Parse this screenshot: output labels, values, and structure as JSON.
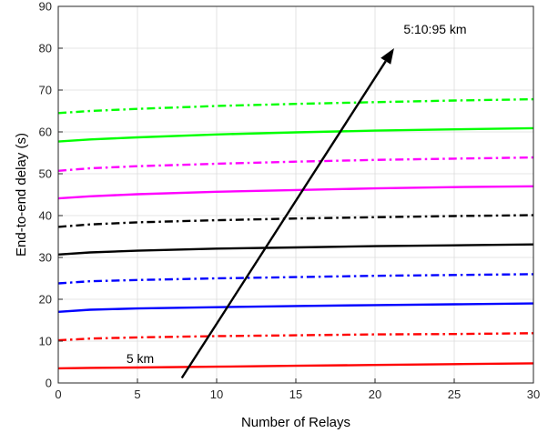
{
  "chart_data": {
    "type": "line",
    "xlabel": "Number of Relays",
    "ylabel": "End-to-end delay (s)",
    "xlim": [
      0,
      30
    ],
    "ylim": [
      0,
      90
    ],
    "xticks": [
      0,
      5,
      10,
      15,
      20,
      25,
      30
    ],
    "yticks": [
      0,
      10,
      20,
      30,
      40,
      50,
      60,
      70,
      80,
      90
    ],
    "grid": true,
    "x": [
      0,
      2,
      5,
      10,
      15,
      20,
      25,
      30
    ],
    "series": [
      {
        "color": "#ff0000",
        "style": "solid",
        "values": [
          3.5,
          3.6,
          3.7,
          3.9,
          4.1,
          4.3,
          4.5,
          4.7
        ]
      },
      {
        "color": "#ff0000",
        "style": "dashdot",
        "values": [
          10.2,
          10.6,
          10.9,
          11.2,
          11.4,
          11.6,
          11.7,
          11.9
        ]
      },
      {
        "color": "#0000ff",
        "style": "solid",
        "values": [
          17.0,
          17.5,
          17.8,
          18.1,
          18.4,
          18.6,
          18.8,
          19.0
        ]
      },
      {
        "color": "#0000ff",
        "style": "dashdot",
        "values": [
          23.8,
          24.3,
          24.6,
          25.0,
          25.3,
          25.6,
          25.8,
          26.0
        ]
      },
      {
        "color": "#000000",
        "style": "solid",
        "values": [
          30.7,
          31.2,
          31.6,
          32.1,
          32.4,
          32.7,
          32.9,
          33.1
        ]
      },
      {
        "color": "#000000",
        "style": "dashdot",
        "values": [
          37.3,
          37.9,
          38.4,
          38.9,
          39.3,
          39.6,
          39.9,
          40.1
        ]
      },
      {
        "color": "#ff00ff",
        "style": "solid",
        "values": [
          44.1,
          44.6,
          45.1,
          45.7,
          46.1,
          46.5,
          46.8,
          47.0
        ]
      },
      {
        "color": "#ff00ff",
        "style": "dashdot",
        "values": [
          50.7,
          51.3,
          51.8,
          52.4,
          52.9,
          53.3,
          53.6,
          53.9
        ]
      },
      {
        "color": "#00ff00",
        "style": "solid",
        "values": [
          57.7,
          58.2,
          58.7,
          59.4,
          59.9,
          60.3,
          60.6,
          60.9
        ]
      },
      {
        "color": "#00ff00",
        "style": "dashdot",
        "values": [
          64.5,
          65.0,
          65.5,
          66.2,
          66.7,
          67.1,
          67.5,
          67.8
        ]
      }
    ],
    "arrow": {
      "from": [
        7.8,
        1.2
      ],
      "to": [
        21.2,
        80.0
      ]
    },
    "annotations": [
      {
        "text": "5 km",
        "x": 4.3,
        "y": 4.8
      },
      {
        "text": "5:10:95 km",
        "x": 21.8,
        "y": 83.5
      }
    ]
  }
}
